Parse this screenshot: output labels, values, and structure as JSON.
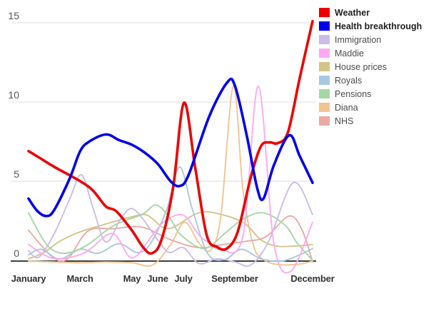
{
  "chart_data": {
    "type": "line",
    "title": "",
    "x_axis": {
      "unit": "month",
      "tick_labels": [
        "January",
        "March",
        "May",
        "June",
        "July",
        "September",
        "December"
      ],
      "tick_months": [
        0,
        2,
        4,
        5,
        6,
        8,
        11
      ],
      "range_months": [
        0,
        11
      ]
    },
    "y_axis": {
      "tick_labels": [
        "15",
        "10",
        "5",
        "0"
      ],
      "ticks": [
        15,
        10,
        5,
        0
      ],
      "range": [
        0,
        15
      ],
      "gridlines": true
    },
    "legend": {
      "position": "top-right",
      "emphasized": [
        "Weather",
        "Health breakthrough"
      ]
    },
    "series": [
      {
        "name": "Weather",
        "color": "#ec0000",
        "emphasis": true,
        "points": [
          [
            0,
            6.9
          ],
          [
            0.5,
            6.4
          ],
          [
            1,
            5.9
          ],
          [
            2,
            5.0
          ],
          [
            2.5,
            4.4
          ],
          [
            3,
            3.4
          ],
          [
            3.4,
            3.1
          ],
          [
            4,
            1.9
          ],
          [
            4.45,
            0.8
          ],
          [
            4.78,
            0.45
          ],
          [
            5.15,
            1.3
          ],
          [
            5.6,
            4.6
          ],
          [
            6.02,
            9.95
          ],
          [
            6.45,
            5.9
          ],
          [
            6.9,
            1.6
          ],
          [
            7.3,
            0.85
          ],
          [
            7.68,
            0.75
          ],
          [
            8.1,
            1.8
          ],
          [
            8.6,
            5.2
          ],
          [
            9.0,
            7.2
          ],
          [
            9.35,
            7.45
          ],
          [
            9.65,
            7.4
          ],
          [
            10.05,
            8.1
          ],
          [
            10.5,
            11.5
          ],
          [
            11,
            15.1
          ]
        ]
      },
      {
        "name": "Health breakthrough",
        "color": "#0000ec",
        "emphasis": true,
        "points": [
          [
            0,
            3.9
          ],
          [
            0.35,
            3.1
          ],
          [
            0.7,
            2.8
          ],
          [
            1,
            3.2
          ],
          [
            1.6,
            5.2
          ],
          [
            2,
            6.9
          ],
          [
            2.35,
            7.5
          ],
          [
            3,
            7.95
          ],
          [
            3.5,
            7.6
          ],
          [
            4,
            7.3
          ],
          [
            4.5,
            6.8
          ],
          [
            5,
            6.1
          ],
          [
            5.5,
            5.0
          ],
          [
            5.85,
            4.7
          ],
          [
            6.2,
            5.4
          ],
          [
            7,
            9.1
          ],
          [
            7.7,
            11.25
          ],
          [
            8,
            11.0
          ],
          [
            8.45,
            7.9
          ],
          [
            8.85,
            4.6
          ],
          [
            9.1,
            3.9
          ],
          [
            9.5,
            6.0
          ],
          [
            10.1,
            7.9
          ],
          [
            10.5,
            6.6
          ],
          [
            11,
            4.9
          ]
        ]
      },
      {
        "name": "Immigration",
        "color": "#cbbce9",
        "emphasis": false,
        "points": [
          [
            0,
            0.6
          ],
          [
            0.4,
            0.2
          ],
          [
            1,
            1.7
          ],
          [
            1.6,
            3.9
          ],
          [
            2.05,
            5.4
          ],
          [
            2.5,
            3.3
          ],
          [
            3.0,
            1.15
          ],
          [
            3.6,
            2.7
          ],
          [
            4.1,
            3.2
          ],
          [
            5.0,
            1.3
          ],
          [
            5.45,
            0.5
          ],
          [
            6.0,
            0.8
          ],
          [
            6.6,
            -0.2
          ],
          [
            7.3,
            0.1
          ],
          [
            8.0,
            -0.1
          ],
          [
            8.6,
            -0.3
          ],
          [
            9.3,
            1.2
          ],
          [
            10.25,
            4.9
          ],
          [
            11,
            2.9
          ]
        ]
      },
      {
        "name": "Maddie",
        "color": "#ffa9f2",
        "emphasis": false,
        "points": [
          [
            0,
            1.0
          ],
          [
            0.6,
            0.35
          ],
          [
            1.2,
            0.1
          ],
          [
            2.2,
            0.5
          ],
          [
            3.25,
            1.7
          ],
          [
            4.0,
            0.15
          ],
          [
            4.8,
            1.6
          ],
          [
            5.3,
            2.5
          ],
          [
            6.0,
            2.85
          ],
          [
            6.6,
            1.6
          ],
          [
            7.0,
            1.1
          ],
          [
            7.45,
            0.7
          ],
          [
            8.3,
            1.5
          ],
          [
            8.9,
            11.0
          ],
          [
            9.5,
            1.1
          ],
          [
            10.15,
            -0.7
          ],
          [
            11,
            2.4
          ]
        ]
      },
      {
        "name": "House prices",
        "color": "#d3c489",
        "emphasis": false,
        "points": [
          [
            0,
            0.1
          ],
          [
            0.6,
            0.5
          ],
          [
            1.2,
            1.2
          ],
          [
            2,
            1.8
          ],
          [
            3,
            2.3
          ],
          [
            4,
            2.75
          ],
          [
            4.6,
            2.85
          ],
          [
            5.4,
            2.0
          ],
          [
            6.5,
            2.95
          ],
          [
            7.2,
            3.0
          ],
          [
            8.3,
            2.4
          ],
          [
            9.0,
            1.3
          ],
          [
            9.6,
            0.9
          ],
          [
            10.3,
            0.9
          ],
          [
            11,
            1.0
          ]
        ]
      },
      {
        "name": "Royals",
        "color": "#a8c8e1",
        "emphasis": false,
        "points": [
          [
            0,
            0.35
          ],
          [
            0.5,
            0.7
          ],
          [
            1.2,
            0.08
          ],
          [
            2,
            0.7
          ],
          [
            2.7,
            0.45
          ],
          [
            3.5,
            1.05
          ],
          [
            4.2,
            0.5
          ],
          [
            4.7,
            1.0
          ],
          [
            5.35,
            3.2
          ],
          [
            5.85,
            5.9
          ],
          [
            6.35,
            3.2
          ],
          [
            6.95,
            0.4
          ],
          [
            7.6,
            0.05
          ],
          [
            8.25,
            0.7
          ],
          [
            9.0,
            0.1
          ],
          [
            9.8,
            -0.05
          ],
          [
            10.5,
            0.35
          ],
          [
            11,
            0.75
          ]
        ]
      },
      {
        "name": "Pensions",
        "color": "#a5d7a5",
        "emphasis": false,
        "points": [
          [
            0,
            3.0
          ],
          [
            0.7,
            1.0
          ],
          [
            1.35,
            0.45
          ],
          [
            2.2,
            0.9
          ],
          [
            3.3,
            2.2
          ],
          [
            4.4,
            2.9
          ],
          [
            4.95,
            3.5
          ],
          [
            5.5,
            2.6
          ],
          [
            5.9,
            1.6
          ],
          [
            6.8,
            0.75
          ],
          [
            7.6,
            1.7
          ],
          [
            8.3,
            2.6
          ],
          [
            9.1,
            3.0
          ],
          [
            9.95,
            2.2
          ],
          [
            10.4,
            1.1
          ],
          [
            11,
            0.0
          ]
        ]
      },
      {
        "name": "Diana",
        "color": "#f2c492",
        "emphasis": false,
        "points": [
          [
            0,
            -0.05
          ],
          [
            1,
            -0.1
          ],
          [
            2,
            -0.15
          ],
          [
            3,
            -0.1
          ],
          [
            4,
            -0.15
          ],
          [
            4.8,
            -0.3
          ],
          [
            5.5,
            1.0
          ],
          [
            6.05,
            2.4
          ],
          [
            6.6,
            1.1
          ],
          [
            7.05,
            0.65
          ],
          [
            7.45,
            2.8
          ],
          [
            7.93,
            11.0
          ],
          [
            8.3,
            4.5
          ],
          [
            8.7,
            1.0
          ],
          [
            9.05,
            0.1
          ],
          [
            9.6,
            -0.25
          ],
          [
            10.4,
            -0.25
          ],
          [
            11,
            -0.05
          ]
        ]
      },
      {
        "name": "NHS",
        "color": "#eba9a4",
        "emphasis": false,
        "points": [
          [
            0,
            1.9
          ],
          [
            0.9,
            0.25
          ],
          [
            1.5,
            0.08
          ],
          [
            2.3,
            1.85
          ],
          [
            3.3,
            2.0
          ],
          [
            4.4,
            2.1
          ],
          [
            5.5,
            1.3
          ],
          [
            6.6,
            0.8
          ],
          [
            7.5,
            1.0
          ],
          [
            8.4,
            1.2
          ],
          [
            9.2,
            1.5
          ],
          [
            10.1,
            2.8
          ],
          [
            10.6,
            1.9
          ],
          [
            11,
            -0.1
          ]
        ]
      }
    ]
  }
}
